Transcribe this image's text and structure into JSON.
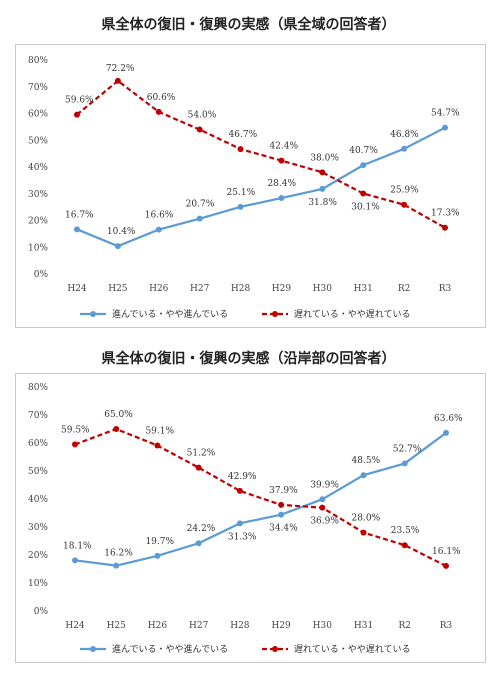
{
  "charts": [
    {
      "title": "県全体の復旧・復興の実感（県全域の回答者）"
    },
    {
      "title": "県全体の復旧・復興の実感（沿岸部の回答者）"
    }
  ],
  "chart_data": [
    {
      "type": "line",
      "title": "県全体の復旧・復興の実感（県全域の回答者）",
      "categories": [
        "H24",
        "H25",
        "H26",
        "H27",
        "H28",
        "H29",
        "H30",
        "H31",
        "R2",
        "R3"
      ],
      "ylim": [
        0,
        80
      ],
      "yticks": [
        "0%",
        "10%",
        "20%",
        "30%",
        "40%",
        "50%",
        "60%",
        "70%",
        "80%"
      ],
      "grid": false,
      "legend_position": "bottom",
      "series": [
        {
          "name": "進んでいる・やや進んでいる",
          "color": "#5b9bd5",
          "style": "solid",
          "values": [
            16.7,
            10.4,
            16.6,
            20.7,
            25.1,
            28.4,
            31.8,
            40.7,
            46.8,
            54.7
          ],
          "labels": [
            "16.7%",
            "10.4%",
            "16.6%",
            "20.7%",
            "25.1%",
            "28.4%",
            "31.8%",
            "40.7%",
            "46.8%",
            "54.7%"
          ]
        },
        {
          "name": "遅れている・やや遅れている",
          "color": "#c00000",
          "style": "dashed",
          "values": [
            59.6,
            72.2,
            60.6,
            54.0,
            46.7,
            42.4,
            38.0,
            30.1,
            25.9,
            17.3
          ],
          "labels": [
            "59.6%",
            "72.2%",
            "60.6%",
            "54.0%",
            "46.7%",
            "42.4%",
            "38.0%",
            "30.1%",
            "25.9%",
            "17.3%"
          ]
        }
      ]
    },
    {
      "type": "line",
      "title": "県全体の復旧・復興の実感（沿岸部の回答者）",
      "categories": [
        "H24",
        "H25",
        "H26",
        "H27",
        "H28",
        "H29",
        "H30",
        "H31",
        "R2",
        "R3"
      ],
      "ylim": [
        0,
        80
      ],
      "yticks": [
        "0%",
        "10%",
        "20%",
        "30%",
        "40%",
        "50%",
        "60%",
        "70%",
        "80%"
      ],
      "grid": false,
      "legend_position": "bottom",
      "series": [
        {
          "name": "進んでいる・やや進んでいる",
          "color": "#5b9bd5",
          "style": "solid",
          "values": [
            18.1,
            16.2,
            19.7,
            24.2,
            31.3,
            34.4,
            39.9,
            48.5,
            52.7,
            63.6
          ],
          "labels": [
            "18.1%",
            "16.2%",
            "19.7%",
            "24.2%",
            "31.3%",
            "34.4%",
            "39.9%",
            "48.5%",
            "52.7%",
            "63.6%"
          ]
        },
        {
          "name": "遅れている・やや遅れている",
          "color": "#c00000",
          "style": "dashed",
          "values": [
            59.5,
            65.0,
            59.1,
            51.2,
            42.9,
            37.9,
            36.9,
            28.0,
            23.5,
            16.1
          ],
          "labels": [
            "59.5%",
            "65.0%",
            "59.1%",
            "51.2%",
            "42.9%",
            "37.9%",
            "36.9%",
            "28.0%",
            "23.5%",
            "16.1%"
          ]
        }
      ]
    }
  ]
}
